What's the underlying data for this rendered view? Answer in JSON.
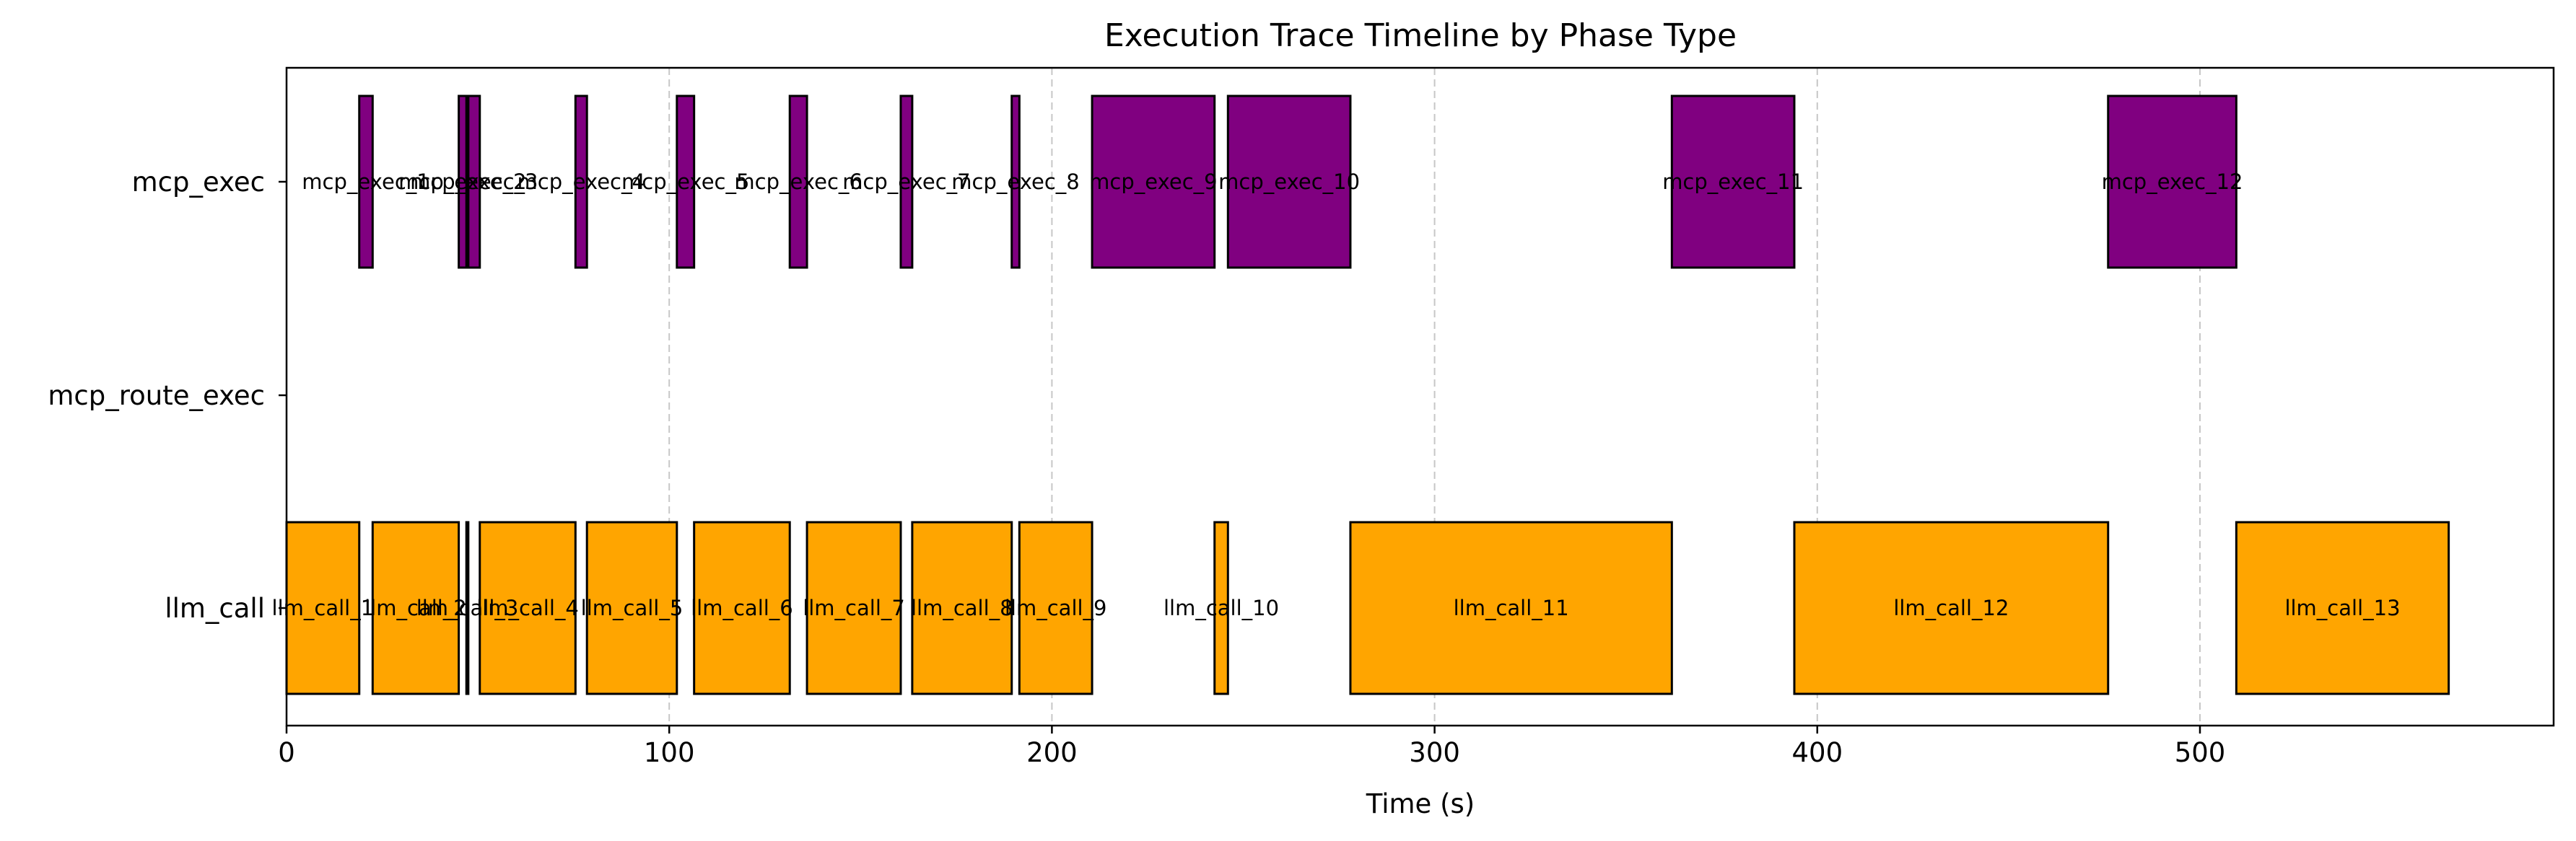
{
  "chart_data": {
    "type": "timeline",
    "title": "Execution Trace Timeline by Phase Type",
    "xlabel": "Time (s)",
    "ylabel": "",
    "xlim": [
      0,
      595
    ],
    "xticks": [
      0,
      100,
      200,
      300,
      400,
      500
    ],
    "grid": "x-dashed",
    "categories": [
      "mcp_exec",
      "mcp_route_exec",
      "llm_call"
    ],
    "colors": {
      "llm_call": "#FFA500",
      "mcp_exec": "#800080"
    },
    "series": [
      {
        "name": "mcp_exec",
        "category": "mcp_exec",
        "bars": [
          {
            "label": "mcp_exec_1",
            "start": 19,
            "end": 22.5
          },
          {
            "label": "mcp_exec_2",
            "start": 45,
            "end": 47
          },
          {
            "label": "mcp_exec_3",
            "start": 47.5,
            "end": 50.5
          },
          {
            "label": "mcp_exec_4",
            "start": 75.5,
            "end": 78.5
          },
          {
            "label": "mcp_exec_5",
            "start": 102,
            "end": 106.5
          },
          {
            "label": "mcp_exec_6",
            "start": 131.5,
            "end": 136
          },
          {
            "label": "mcp_exec_7",
            "start": 160.5,
            "end": 163.5
          },
          {
            "label": "mcp_exec_8",
            "start": 189.5,
            "end": 191.5
          },
          {
            "label": "mcp_exec_9",
            "start": 210.5,
            "end": 242.5
          },
          {
            "label": "mcp_exec_10",
            "start": 246,
            "end": 278
          },
          {
            "label": "mcp_exec_11",
            "start": 362,
            "end": 394
          },
          {
            "label": "mcp_exec_12",
            "start": 476,
            "end": 509.5
          }
        ]
      },
      {
        "name": "mcp_route_exec",
        "category": "mcp_route_exec",
        "bars": []
      },
      {
        "name": "llm_call",
        "category": "llm_call",
        "bars": [
          {
            "label": "llm_call_1",
            "start": 0,
            "end": 19
          },
          {
            "label": "llm_call_2",
            "start": 22.5,
            "end": 45
          },
          {
            "label": "llm_call_3",
            "start": 47,
            "end": 47.5
          },
          {
            "label": "llm_call_4",
            "start": 50.5,
            "end": 75.5
          },
          {
            "label": "llm_call_5",
            "start": 78.5,
            "end": 102
          },
          {
            "label": "llm_call_6",
            "start": 106.5,
            "end": 131.5
          },
          {
            "label": "llm_call_7",
            "start": 136,
            "end": 160.5
          },
          {
            "label": "llm_call_8",
            "start": 163.5,
            "end": 189.5
          },
          {
            "label": "llm_call_9",
            "start": 191.5,
            "end": 210.5
          },
          {
            "label": "llm_call_10",
            "start": 242.5,
            "end": 246
          },
          {
            "label": "llm_call_11",
            "start": 278,
            "end": 362
          },
          {
            "label": "llm_call_12",
            "start": 394,
            "end": 476
          },
          {
            "label": "llm_call_13",
            "start": 509.5,
            "end": 565
          }
        ]
      }
    ]
  }
}
